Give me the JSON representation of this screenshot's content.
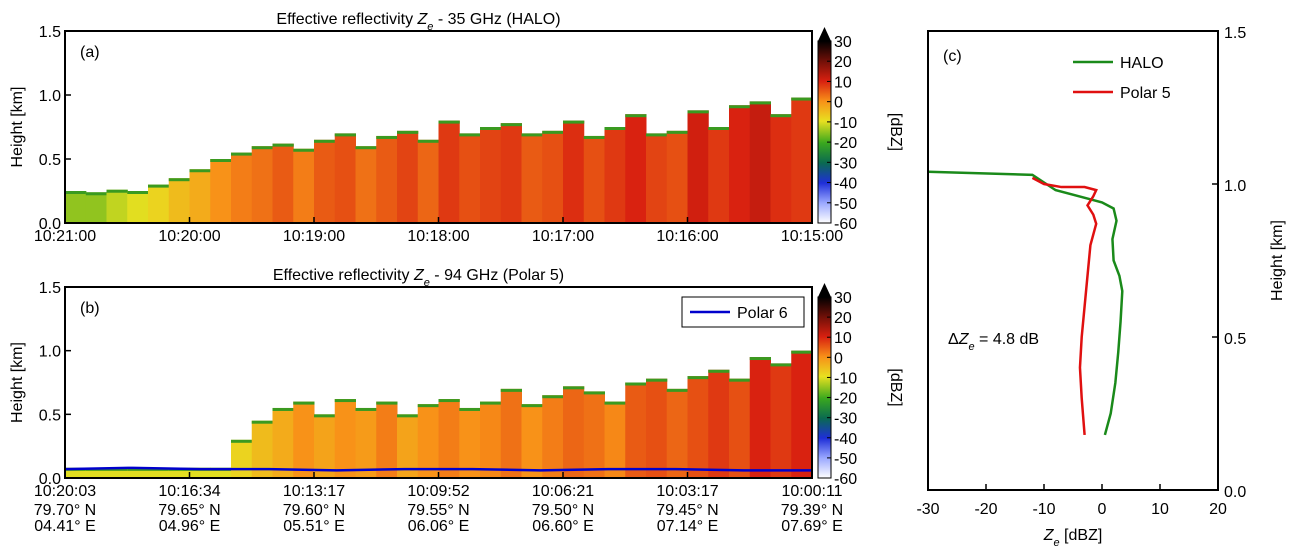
{
  "chart_data": [
    {
      "type": "curtain",
      "panel": "(a)",
      "title": {
        "prefix": "Effective reflectivity ",
        "symbol": "Z",
        "sub": "e",
        "suffix": " - 35 GHz (HALO)"
      },
      "ylabel": "Height [km]",
      "xtick_labels": [
        "10:21:00",
        "10:20:00",
        "10:19:00",
        "10:18:00",
        "10:17:00",
        "10:16:00",
        "10:15:00"
      ],
      "ylim": [
        0,
        1.5
      ],
      "yticks": [
        {
          "value": 0,
          "label": "0.0"
        },
        {
          "value": 0.5,
          "label": "0.5"
        },
        {
          "value": 1,
          "label": "1.0"
        },
        {
          "value": 1.5,
          "label": "1.5"
        }
      ],
      "echo_top": [
        0.25,
        0.24,
        0.26,
        0.25,
        0.3,
        0.35,
        0.42,
        0.5,
        0.55,
        0.6,
        0.62,
        0.58,
        0.65,
        0.7,
        0.6,
        0.68,
        0.72,
        0.65,
        0.8,
        0.7,
        0.75,
        0.78,
        0.7,
        0.72,
        0.8,
        0.68,
        0.75,
        0.85,
        0.7,
        0.72,
        0.88,
        0.75,
        0.92,
        0.95,
        0.85,
        0.98
      ],
      "reflectivity": [
        -15,
        -15,
        -12,
        -10,
        -8,
        -5,
        -3,
        0,
        2,
        3,
        5,
        2,
        5,
        6,
        3,
        5,
        7,
        4,
        8,
        6,
        7,
        8,
        5,
        6,
        9,
        6,
        8,
        10,
        7,
        6,
        11,
        8,
        10,
        12,
        9,
        8
      ],
      "clim": [
        -60,
        30
      ],
      "cticks": [
        30,
        20,
        10,
        0,
        -10,
        -20,
        -30,
        -40,
        -50,
        -60
      ],
      "clabel": "[dBZ]"
    },
    {
      "type": "curtain",
      "panel": "(b)",
      "title": {
        "prefix": "Effective reflectivity ",
        "symbol": "Z",
        "sub": "e",
        "suffix": " - 94 GHz (Polar 5)"
      },
      "ylabel": "Height [km]",
      "xtick_labels": [
        "10:20:03",
        "10:16:34",
        "10:13:17",
        "10:09:52",
        "10:06:21",
        "10:03:17",
        "10:00:11"
      ],
      "lat_labels": [
        "79.70° N",
        "79.65° N",
        "79.60° N",
        "79.55° N",
        "79.50° N",
        "79.45° N",
        "79.39° N"
      ],
      "lon_labels": [
        "04.41° E",
        "04.96° E",
        "05.51° E",
        "06.06° E",
        "06.60° E",
        "07.14° E",
        "07.69° E"
      ],
      "ylim": [
        0,
        1.5
      ],
      "yticks": [
        {
          "value": 0,
          "label": "0.0"
        },
        {
          "value": 0.5,
          "label": "0.5"
        },
        {
          "value": 1,
          "label": "1.0"
        },
        {
          "value": 1.5,
          "label": "1.5"
        }
      ],
      "echo_top": [
        0.08,
        0.08,
        0.08,
        0.08,
        0.08,
        0.08,
        0.08,
        0.08,
        0.3,
        0.45,
        0.55,
        0.6,
        0.5,
        0.62,
        0.55,
        0.6,
        0.5,
        0.58,
        0.62,
        0.55,
        0.6,
        0.7,
        0.58,
        0.65,
        0.72,
        0.68,
        0.6,
        0.75,
        0.78,
        0.7,
        0.8,
        0.85,
        0.78,
        0.95,
        0.9,
        1.0
      ],
      "reflectivity": [
        -10,
        -10,
        -10,
        -10,
        -10,
        -10,
        -10,
        -10,
        -8,
        -5,
        -3,
        0,
        -2,
        0,
        -1,
        2,
        -2,
        0,
        2,
        0,
        1,
        3,
        0,
        2,
        4,
        3,
        1,
        5,
        6,
        4,
        6,
        8,
        6,
        10,
        8,
        10
      ],
      "series": [
        {
          "name": "Polar 6",
          "color": "#0000cc",
          "values": [
            0.07,
            0.08,
            0.07,
            0.07,
            0.06,
            0.07,
            0.07,
            0.06,
            0.07,
            0.07,
            0.06,
            0.06
          ]
        }
      ],
      "legend": "upper right",
      "clim": [
        -60,
        30
      ],
      "cticks": [
        30,
        20,
        10,
        0,
        -10,
        -20,
        -30,
        -40,
        -50,
        -60
      ],
      "clabel": "[dBZ]"
    },
    {
      "type": "line",
      "panel": "(c)",
      "xlabel": {
        "symbol": "Z",
        "sub": "e",
        "suffix": " [dBZ]"
      },
      "ylabel": "Height [km]",
      "xlim": [
        -30,
        20
      ],
      "xticks": [
        -30,
        -20,
        -10,
        0,
        10,
        20
      ],
      "ylim": [
        0,
        1.5
      ],
      "yticks": [
        {
          "value": 0,
          "label": "0.0"
        },
        {
          "value": 0.5,
          "label": "0.5"
        },
        {
          "value": 1,
          "label": "1.0"
        },
        {
          "value": 1.5,
          "label": "1.5"
        }
      ],
      "annotation": {
        "prefix": "Δ",
        "symbol": "Z",
        "sub": "e",
        "suffix": " = 4.8 dB"
      },
      "legend": "upper right",
      "series": [
        {
          "name": "HALO",
          "color": "#1a8a1a",
          "x": [
            -30,
            -12,
            -8,
            -2,
            0,
            2,
            2.5,
            1.8,
            2,
            3,
            3.5,
            3.2,
            2.8,
            2.3,
            1.5,
            0.5
          ],
          "values": [
            1.04,
            1.03,
            0.98,
            0.95,
            0.94,
            0.92,
            0.88,
            0.82,
            0.75,
            0.7,
            0.65,
            0.55,
            0.45,
            0.35,
            0.25,
            0.18
          ]
        },
        {
          "name": "Polar 5",
          "color": "#e01010",
          "x": [
            -12,
            -10,
            -7,
            -3,
            -1,
            -1.5,
            -2.5,
            -1.5,
            -1,
            -2,
            -2.5,
            -3,
            -3.5,
            -3.8,
            -3.5,
            -3
          ],
          "values": [
            1.02,
            1.0,
            0.99,
            0.99,
            0.98,
            0.96,
            0.93,
            0.9,
            0.87,
            0.8,
            0.7,
            0.6,
            0.5,
            0.4,
            0.3,
            0.18
          ]
        }
      ]
    }
  ]
}
